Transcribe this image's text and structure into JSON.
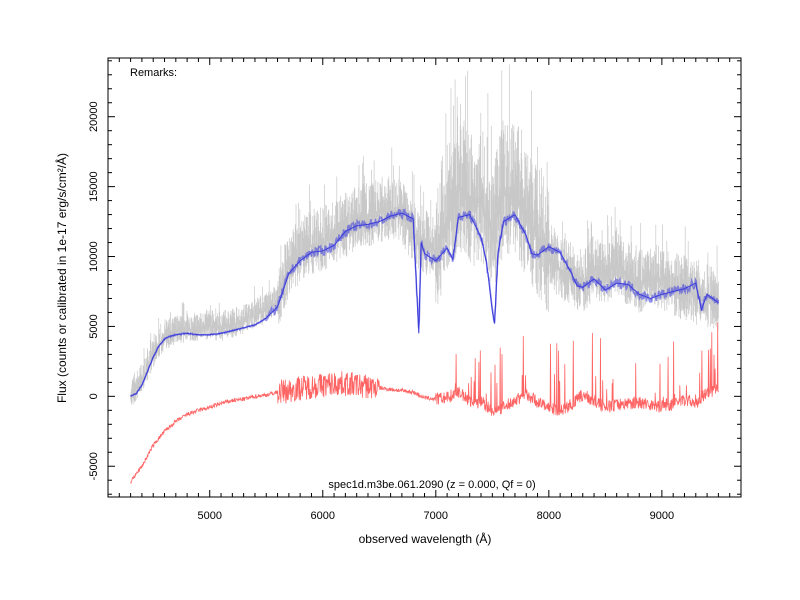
{
  "chart_data": {
    "type": "line",
    "xlabel": "observed wavelength (Å)",
    "ylabel": "Flux (counts or calibrated in 1e-17 erg/s/cm²/Å)",
    "xlim": [
      4100,
      9700
    ],
    "ylim": [
      -7200,
      24200
    ],
    "xticks": [
      5000,
      6000,
      7000,
      8000,
      9000
    ],
    "yticks": [
      -5000,
      0,
      5000,
      10000,
      15000,
      20000
    ],
    "remarks_label": "Remarks:",
    "annotation": "spec1d.m3be.061.2090 (z = 0.000, Qf = 0)",
    "grid": false,
    "series": [
      {
        "color": "#c8c8c8",
        "style": "noisy-band",
        "x": [
          4300,
          4400,
          4500,
          4600,
          4700,
          4800,
          4900,
          5000,
          5100,
          5200,
          5300,
          5400,
          5500,
          5600,
          5700,
          5800,
          5900,
          6000,
          6100,
          6200,
          6300,
          6400,
          6500,
          6600,
          6700,
          6800,
          6900,
          7000,
          7100,
          7200,
          7300,
          7400,
          7500,
          7600,
          7700,
          7800,
          7900,
          8000,
          8100,
          8200,
          8300,
          8400,
          8500,
          8600,
          8700,
          8800,
          8900,
          9000,
          9100,
          9200,
          9300,
          9400,
          9500
        ],
        "y": [
          50,
          1200,
          3000,
          4300,
          4600,
          4800,
          4800,
          5000,
          4900,
          5100,
          5400,
          5800,
          6200,
          6800,
          9200,
          10200,
          10800,
          11000,
          11500,
          12000,
          12500,
          12800,
          13000,
          13200,
          13000,
          11500,
          10800,
          10500,
          12500,
          15000,
          13500,
          14000,
          11500,
          14500,
          14500,
          13000,
          11500,
          10000,
          9000,
          8500,
          8000,
          9000,
          8500,
          9500,
          8500,
          8000,
          8500,
          8300,
          7800,
          7500,
          7200,
          7000,
          6700
        ]
      },
      {
        "color": "#3c3cdc",
        "style": "line",
        "x": [
          4300,
          4350,
          4400,
          4450,
          4500,
          4550,
          4600,
          4650,
          4700,
          4800,
          4900,
          5000,
          5100,
          5200,
          5300,
          5400,
          5500,
          5600,
          5700,
          5800,
          5900,
          6000,
          6100,
          6200,
          6300,
          6400,
          6500,
          6600,
          6700,
          6800,
          6850,
          6870,
          6900,
          7000,
          7100,
          7150,
          7200,
          7300,
          7400,
          7450,
          7500,
          7520,
          7550,
          7600,
          7700,
          7800,
          7850,
          7900,
          8000,
          8100,
          8200,
          8250,
          8300,
          8400,
          8500,
          8600,
          8700,
          8800,
          8900,
          9000,
          9100,
          9200,
          9300,
          9350,
          9400,
          9500
        ],
        "y": [
          0,
          200,
          800,
          1800,
          2800,
          3600,
          4100,
          4300,
          4400,
          4500,
          4400,
          4400,
          4500,
          4700,
          4900,
          5100,
          5600,
          6400,
          8800,
          9700,
          10300,
          10400,
          10800,
          11800,
          12200,
          12300,
          12500,
          12900,
          13100,
          12700,
          4500,
          11000,
          10200,
          9700,
          10600,
          9800,
          12800,
          13000,
          11400,
          9500,
          6100,
          5200,
          10300,
          12500,
          13000,
          11500,
          10200,
          10100,
          10700,
          10300,
          8800,
          7900,
          7800,
          8400,
          7600,
          8100,
          8000,
          7300,
          7000,
          7300,
          7500,
          7700,
          8100,
          6200,
          7300,
          6700
        ]
      },
      {
        "color": "#ff6464",
        "style": "noisy-line",
        "x": [
          4300,
          4400,
          4500,
          4600,
          4700,
          4800,
          4900,
          5000,
          5100,
          5200,
          5300,
          5400,
          5500,
          5600,
          5700,
          5800,
          5900,
          6000,
          6100,
          6200,
          6300,
          6400,
          6500,
          6600,
          6700,
          6800,
          6900,
          7000,
          7100,
          7200,
          7300,
          7400,
          7500,
          7600,
          7700,
          7800,
          7900,
          8000,
          8100,
          8200,
          8300,
          8400,
          8500,
          8600,
          8700,
          8800,
          8900,
          9000,
          9100,
          9200,
          9300,
          9400,
          9500
        ],
        "y": [
          -6100,
          -5000,
          -3500,
          -2500,
          -1800,
          -1300,
          -1000,
          -800,
          -500,
          -300,
          -200,
          0,
          100,
          300,
          400,
          600,
          700,
          800,
          900,
          900,
          800,
          700,
          600,
          500,
          400,
          300,
          -100,
          -200,
          -100,
          300,
          -300,
          -400,
          -1000,
          -800,
          -300,
          200,
          -400,
          -800,
          -1000,
          -600,
          100,
          -300,
          -800,
          -600,
          -500,
          -400,
          -600,
          -700,
          -600,
          -300,
          -400,
          200,
          500
        ]
      }
    ]
  }
}
